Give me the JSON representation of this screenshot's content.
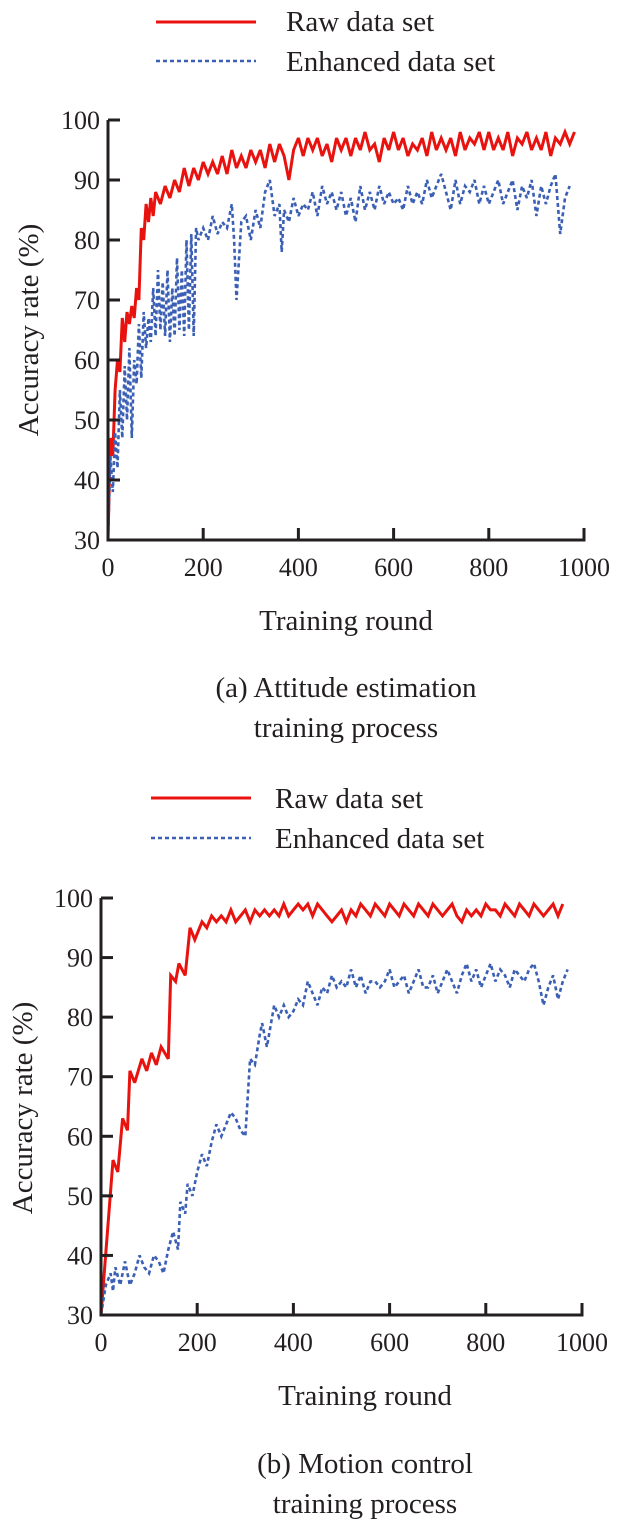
{
  "figure": {
    "colors": {
      "raw": "#e8130f",
      "enhanced": "#3a5fb4",
      "axis": "#231f20"
    }
  },
  "chart_data": [
    {
      "type": "line",
      "id": "a",
      "title": "(a) Attitude estimation training process",
      "caption_lines": [
        "(a) Attitude estimation",
        "training process"
      ],
      "xlabel": "Training round",
      "ylabel": "Accuracy rate (%)",
      "xlim": [
        0,
        1000
      ],
      "ylim": [
        30,
        100
      ],
      "xticks": [
        0,
        200,
        400,
        600,
        800,
        1000
      ],
      "yticks": [
        30,
        40,
        50,
        60,
        70,
        80,
        90,
        100
      ],
      "grid": false,
      "legend": {
        "position": "top-center",
        "entries": [
          "Raw data set",
          "Enhanced data set"
        ]
      },
      "series": [
        {
          "name": "Raw data set",
          "style": "solid",
          "x": [
            0,
            5,
            10,
            15,
            20,
            25,
            30,
            35,
            40,
            45,
            50,
            55,
            60,
            65,
            70,
            75,
            80,
            85,
            90,
            95,
            100,
            110,
            120,
            130,
            140,
            150,
            160,
            170,
            180,
            190,
            200,
            210,
            220,
            230,
            240,
            250,
            260,
            270,
            280,
            290,
            300,
            310,
            320,
            330,
            340,
            350,
            360,
            370,
            380,
            390,
            400,
            410,
            420,
            430,
            440,
            450,
            460,
            470,
            480,
            490,
            500,
            510,
            520,
            530,
            540,
            550,
            560,
            570,
            580,
            590,
            600,
            610,
            620,
            630,
            640,
            650,
            660,
            670,
            680,
            690,
            700,
            710,
            720,
            730,
            740,
            750,
            760,
            770,
            780,
            790,
            800,
            810,
            820,
            830,
            840,
            850,
            860,
            870,
            880,
            890,
            900,
            910,
            920,
            930,
            940,
            950,
            960,
            970,
            980
          ],
          "y": [
            30,
            47,
            44,
            55,
            60,
            58,
            67,
            63,
            68,
            66,
            69,
            67,
            72,
            70,
            82,
            80,
            86,
            83,
            87,
            84,
            88,
            86,
            89,
            87,
            90,
            88,
            92,
            89,
            92,
            90,
            93,
            91,
            93,
            91,
            94,
            91,
            95,
            92,
            94,
            92,
            95,
            93,
            95,
            92,
            96,
            93,
            96,
            94,
            90,
            95,
            97,
            94,
            97,
            95,
            97,
            94,
            96,
            93,
            97,
            95,
            97,
            94,
            97,
            95,
            98,
            95,
            96,
            93,
            97,
            95,
            98,
            95,
            97,
            94,
            96,
            95,
            97,
            94,
            98,
            95,
            97,
            95,
            97,
            94,
            98,
            95,
            97,
            96,
            98,
            95,
            98,
            95,
            97,
            95,
            98,
            94,
            97,
            96,
            98,
            95,
            97,
            95,
            98,
            94,
            97,
            96,
            98,
            96,
            98
          ]
        },
        {
          "name": "Enhanced data set",
          "style": "dashed",
          "x": [
            0,
            5,
            10,
            15,
            20,
            25,
            30,
            35,
            40,
            45,
            50,
            55,
            60,
            65,
            70,
            75,
            80,
            85,
            90,
            95,
            100,
            105,
            110,
            115,
            120,
            125,
            130,
            135,
            140,
            145,
            150,
            155,
            160,
            165,
            170,
            175,
            180,
            185,
            190,
            200,
            210,
            220,
            230,
            240,
            250,
            260,
            265,
            270,
            280,
            290,
            300,
            310,
            320,
            330,
            340,
            350,
            360,
            365,
            370,
            380,
            390,
            400,
            410,
            420,
            430,
            440,
            450,
            460,
            470,
            480,
            490,
            500,
            510,
            520,
            530,
            540,
            550,
            560,
            570,
            580,
            590,
            600,
            610,
            620,
            630,
            640,
            650,
            660,
            670,
            680,
            690,
            700,
            710,
            720,
            730,
            740,
            750,
            760,
            770,
            780,
            790,
            800,
            810,
            820,
            830,
            840,
            850,
            860,
            870,
            880,
            890,
            900,
            910,
            920,
            930,
            940,
            950,
            960,
            970
          ],
          "y": [
            30,
            44,
            38,
            48,
            42,
            55,
            47,
            59,
            50,
            62,
            47,
            60,
            56,
            66,
            57,
            68,
            62,
            67,
            63,
            72,
            64,
            75,
            65,
            73,
            64,
            75,
            63,
            72,
            64,
            77,
            65,
            75,
            64,
            80,
            65,
            81,
            64,
            82,
            80,
            82,
            80,
            84,
            81,
            83,
            82,
            86,
            80,
            70,
            83,
            84,
            80,
            85,
            82,
            88,
            90,
            84,
            86,
            78,
            85,
            83,
            87,
            84,
            86,
            85,
            88,
            84,
            89,
            86,
            88,
            85,
            88,
            84,
            87,
            83,
            89,
            85,
            88,
            85,
            89,
            86,
            88,
            86,
            87,
            85,
            89,
            86,
            88,
            86,
            90,
            87,
            89,
            91,
            88,
            85,
            90,
            86,
            89,
            88,
            90,
            86,
            89,
            86,
            88,
            90,
            86,
            88,
            90,
            85,
            89,
            87,
            90,
            84,
            89,
            86,
            89,
            91,
            81,
            87,
            89
          ]
        }
      ]
    },
    {
      "type": "line",
      "id": "b",
      "title": "(b) Motion control training process",
      "caption_lines": [
        "(b) Motion control",
        "training process"
      ],
      "xlabel": "Training round",
      "ylabel": "Accuracy rate (%)",
      "xlim": [
        0,
        1000
      ],
      "ylim": [
        30,
        100
      ],
      "xticks": [
        0,
        200,
        400,
        600,
        800,
        1000
      ],
      "yticks": [
        30,
        40,
        50,
        60,
        70,
        80,
        90,
        100
      ],
      "grid": false,
      "legend": {
        "position": "top-center",
        "entries": [
          "Raw data set",
          "Enhanced data set"
        ]
      },
      "series": [
        {
          "name": "Raw data set",
          "style": "solid",
          "x": [
            0,
            25,
            35,
            45,
            55,
            60,
            70,
            85,
            95,
            105,
            115,
            125,
            140,
            145,
            155,
            162,
            175,
            185,
            195,
            210,
            220,
            230,
            240,
            250,
            260,
            270,
            280,
            290,
            300,
            310,
            320,
            330,
            340,
            350,
            360,
            370,
            380,
            390,
            400,
            410,
            420,
            430,
            440,
            450,
            460,
            470,
            480,
            490,
            500,
            510,
            520,
            530,
            540,
            550,
            560,
            570,
            580,
            590,
            600,
            610,
            620,
            630,
            640,
            650,
            660,
            670,
            680,
            690,
            700,
            710,
            720,
            730,
            740,
            750,
            760,
            770,
            780,
            790,
            800,
            810,
            820,
            830,
            840,
            850,
            860,
            870,
            880,
            890,
            900,
            910,
            920,
            930,
            940,
            950,
            960
          ],
          "y": [
            30,
            56,
            54,
            63,
            61,
            71,
            69,
            73,
            71,
            74,
            72,
            75,
            73,
            87,
            86,
            89,
            87,
            95,
            93,
            96,
            95,
            97,
            96,
            97,
            96,
            98,
            96,
            97,
            98,
            96,
            98,
            97,
            98,
            97,
            98,
            97,
            99,
            97,
            98,
            99,
            98,
            99,
            97,
            99,
            98,
            97,
            96,
            97,
            98,
            96,
            98,
            97,
            99,
            98,
            97,
            99,
            98,
            97,
            99,
            98,
            97,
            99,
            98,
            97,
            99,
            98,
            97,
            99,
            98,
            97,
            98,
            99,
            97,
            96,
            98,
            97,
            98,
            97,
            99,
            98,
            98,
            97,
            99,
            98,
            97,
            99,
            98,
            97,
            99,
            98,
            97,
            98,
            99,
            97,
            99
          ]
        },
        {
          "name": "Enhanced data set",
          "style": "dashed",
          "x": [
            0,
            10,
            20,
            25,
            30,
            40,
            50,
            60,
            70,
            80,
            90,
            100,
            110,
            120,
            130,
            140,
            150,
            160,
            165,
            175,
            180,
            190,
            200,
            210,
            220,
            230,
            240,
            250,
            260,
            270,
            280,
            290,
            300,
            310,
            320,
            330,
            335,
            345,
            360,
            370,
            380,
            390,
            400,
            410,
            420,
            430,
            440,
            450,
            460,
            470,
            480,
            490,
            500,
            510,
            520,
            530,
            540,
            550,
            560,
            570,
            580,
            590,
            600,
            610,
            620,
            630,
            640,
            650,
            660,
            670,
            680,
            690,
            700,
            710,
            720,
            730,
            740,
            750,
            760,
            770,
            780,
            790,
            800,
            810,
            820,
            830,
            840,
            850,
            860,
            870,
            880,
            890,
            900,
            910,
            920,
            930,
            940,
            950,
            960,
            970
          ],
          "y": [
            30,
            35,
            37,
            34,
            38,
            35,
            39,
            35,
            37,
            40,
            38,
            37,
            40,
            39,
            37,
            41,
            44,
            41,
            49,
            47,
            52,
            50,
            54,
            57,
            55,
            59,
            62,
            60,
            62,
            64,
            63,
            61,
            60,
            73,
            72,
            77,
            79,
            75,
            82,
            80,
            82,
            80,
            81,
            83,
            82,
            86,
            84,
            82,
            85,
            84,
            87,
            85,
            86,
            85,
            88,
            85,
            87,
            84,
            86,
            86,
            85,
            86,
            88,
            85,
            86,
            87,
            84,
            86,
            88,
            85,
            85,
            87,
            84,
            86,
            88,
            86,
            84,
            87,
            89,
            86,
            88,
            85,
            87,
            89,
            86,
            88,
            87,
            85,
            88,
            87,
            86,
            88,
            89,
            86,
            82,
            85,
            87,
            83,
            86,
            88
          ]
        }
      ]
    }
  ]
}
